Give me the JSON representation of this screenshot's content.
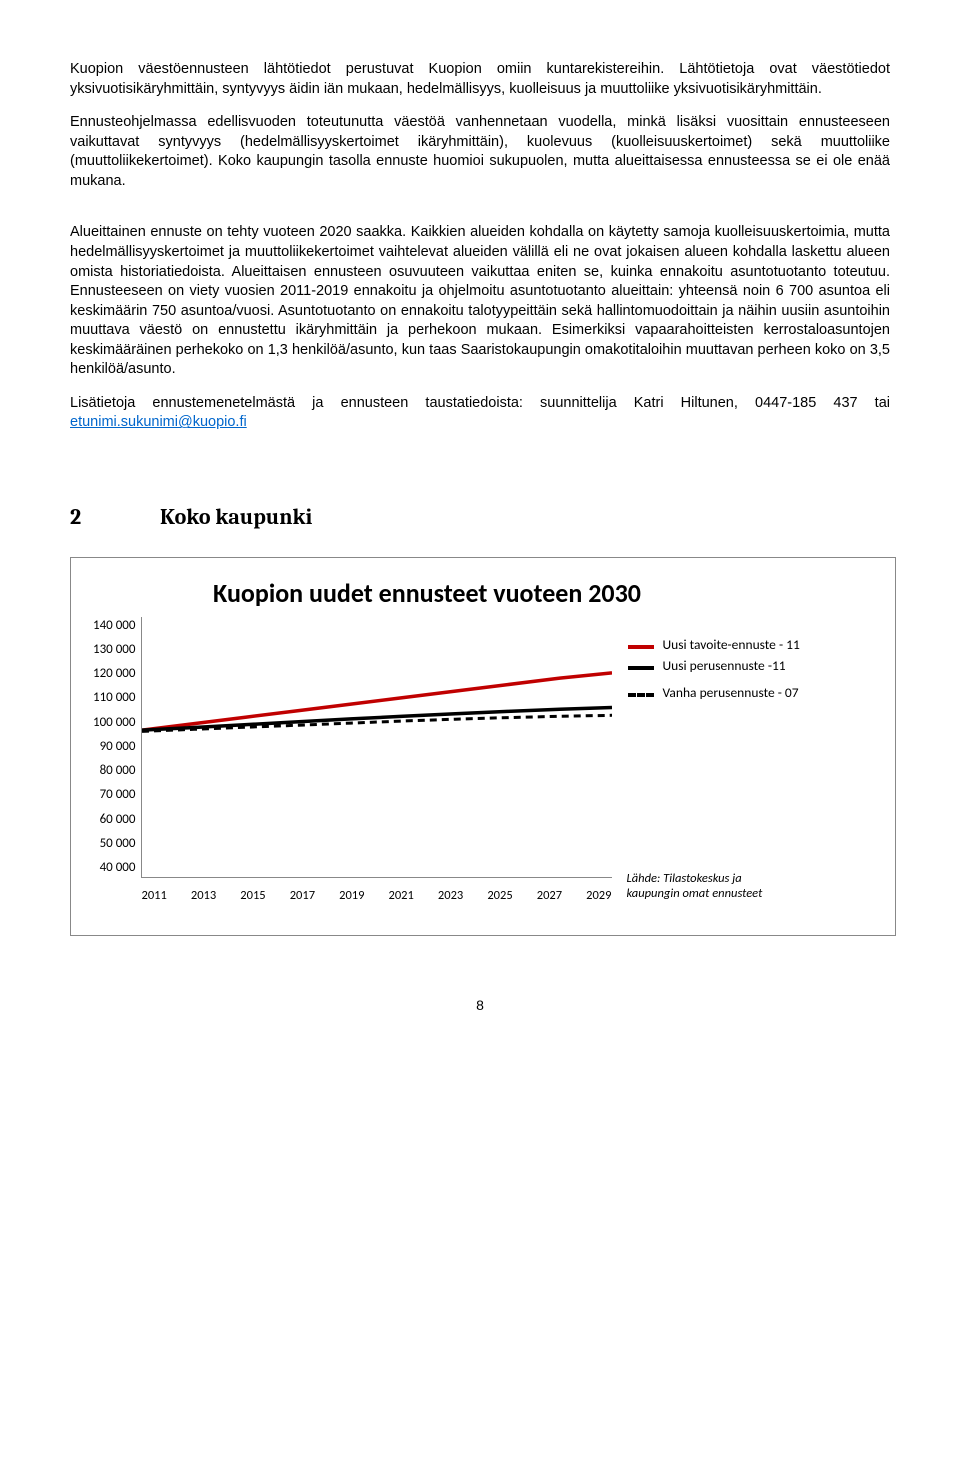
{
  "paragraphs": {
    "p1": "Kuopion väestöennusteen lähtötiedot perustuvat Kuopion omiin kuntarekistereihin. Lähtötietoja ovat väestötiedot yksivuotisikäryhmittäin, syntyvyys äidin iän mukaan, hedelmällisyys, kuolleisuus ja muuttoliike yksivuotisikäryhmittäin.",
    "p2": "Ennusteohjelmassa edellisvuoden toteutunutta väestöä vanhennetaan vuodella, minkä lisäksi vuosittain ennusteeseen vaikuttavat syntyvyys (hedelmällisyyskertoimet ikäryhmittäin), kuolevuus (kuolleisuuskertoimet) sekä muuttoliike (muuttoliikekertoimet). Koko kaupungin tasolla ennuste huomioi sukupuolen, mutta alueittaisessa ennusteessa se ei ole enää mukana.",
    "p3a": "Alueittainen ennuste on tehty vuoteen 2020 saakka. Kaikkien alueiden kohdalla on käytetty samoja kuolleisuuskertoimia, mutta hedelmällisyyskertoimet ja muuttoliikekertoimet vaihtelevat alueiden välillä eli ne ovat jokaisen alueen kohdalla laskettu alueen omista historiatiedoista. Alueittaisen ennusteen osuvuuteen vaikuttaa eniten se, kuinka ennakoitu asuntotuotanto toteutuu. Ennusteeseen on viety vuosien 2011-2019 ennakoitu ja ohjelmoitu asuntotuotanto alueittain: yhteensä noin 6 700 asuntoa eli keskimäärin 750 asuntoa/vuosi. Asuntotuotanto on ennakoitu talotyypeittäin sekä hallintomuodoittain ja näihin uusiin asuntoihin muuttava väestö on ennustettu ikäryhmittäin ja perhekoon mukaan. Esimerkiksi vapaarahoitteisten kerrostaloasuntojen keskimääräinen perhekoko on 1,3 henkilöä/asunto, kun taas Saaristokaupungin omakotitaloihin muuttavan perheen koko on 3,5 henkilöä/asunto.",
    "p4a": "Lisätietoja ennustemenetelmästä ja ennusteen taustatiedoista: suunnittelija Katri Hiltunen, 0447-185 437 tai ",
    "p4link": "etunimi.sukunimi@kuopio.fi"
  },
  "section": {
    "num": "2",
    "title": "Koko kaupunki"
  },
  "chart": {
    "type": "line",
    "title": "Kuopion uudet ennusteet vuoteen 2030",
    "x_ticks": [
      "2011",
      "2013",
      "2015",
      "2017",
      "2019",
      "2021",
      "2023",
      "2025",
      "2027",
      "2029"
    ],
    "y_ticks": [
      "140 000",
      "130 000",
      "120 000",
      "110 000",
      "100 000",
      "90 000",
      "80 000",
      "70 000",
      "60 000",
      "50 000",
      "40 000"
    ],
    "ylim": [
      40000,
      140000
    ],
    "xlim": [
      2011,
      2029
    ],
    "tick_fontsize": 13,
    "title_fontsize": 26,
    "background_color": "#ffffff",
    "border_color": "#888888",
    "series": [
      {
        "label": "Uusi tavoite-ennuste - 11",
        "color": "#c00000",
        "dash": "none",
        "width": 3.5,
        "points": [
          [
            2011,
            96500
          ],
          [
            2013,
            99000
          ],
          [
            2015,
            101500
          ],
          [
            2017,
            104000
          ],
          [
            2019,
            106500
          ],
          [
            2021,
            109000
          ],
          [
            2023,
            111500
          ],
          [
            2025,
            114000
          ],
          [
            2027,
            116500
          ],
          [
            2029,
            118500
          ]
        ]
      },
      {
        "label": "Uusi perusennuste -11",
        "color": "#000000",
        "dash": "none",
        "width": 3.5,
        "points": [
          [
            2011,
            96500
          ],
          [
            2013,
            97500
          ],
          [
            2015,
            98600
          ],
          [
            2017,
            99700
          ],
          [
            2019,
            100800
          ],
          [
            2021,
            101800
          ],
          [
            2023,
            102800
          ],
          [
            2025,
            103700
          ],
          [
            2027,
            104500
          ],
          [
            2029,
            105200
          ]
        ]
      },
      {
        "label": "Vanha perusennuste - 07",
        "color": "#000000",
        "dash": "7 5",
        "width": 3.0,
        "points": [
          [
            2011,
            96000
          ],
          [
            2013,
            96800
          ],
          [
            2015,
            97600
          ],
          [
            2017,
            98400
          ],
          [
            2019,
            99200
          ],
          [
            2021,
            100000
          ],
          [
            2023,
            100700
          ],
          [
            2025,
            101300
          ],
          [
            2027,
            101800
          ],
          [
            2029,
            102200
          ]
        ]
      }
    ],
    "legend_items": [
      "Uusi tavoite-ennuste - 11",
      "Uusi perusennuste -11",
      "Vanha perusennuste - 07"
    ],
    "source": "Lähde: Tilastokeskus ja kaupungin omat ennusteet"
  },
  "page_number": "8"
}
